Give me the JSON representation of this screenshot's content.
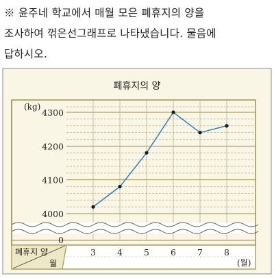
{
  "question": {
    "lines": [
      "※ 윤주네 학교에서 매월 모은 폐휴지의 양을",
      "조사하여 꺾은선그래프로 나타냈습니다. 물음에",
      "답하시오."
    ]
  },
  "colors": {
    "frame_fill": "#faf6e6",
    "frame_border": "#8a8a8a",
    "plot_border": "#9a8a3a",
    "grid_major": "#9a8a3a",
    "grid_minor": "#b9b090",
    "line": "#2f7fba",
    "point": "#1a1a1a"
  },
  "chart_data": {
    "type": "line",
    "title": "폐휴지의 양",
    "ylabel": "(kg)",
    "xlabel": "(월)",
    "corner_label_top": "폐휴지 양",
    "corner_label_bottom": "월",
    "categories": [
      "3",
      "4",
      "5",
      "6",
      "7",
      "8"
    ],
    "values": [
      4020,
      4080,
      4180,
      4300,
      4240,
      4260
    ],
    "ylim": [
      4000,
      4300
    ],
    "y_ticks": [
      "4300",
      "4200",
      "4100",
      "4000"
    ],
    "y_zero_label": "0",
    "y_minor_step": 20,
    "y_axis_broken": true,
    "grid": true
  }
}
